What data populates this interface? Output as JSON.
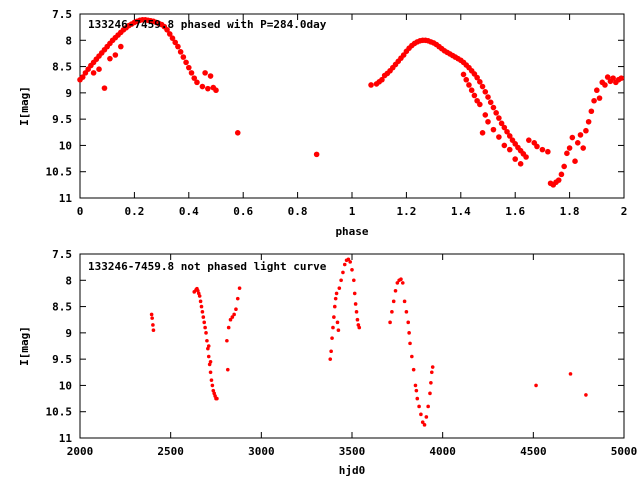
{
  "chart_data": [
    {
      "type": "scatter",
      "title": "133246-7459.8 phased with P=284.0day",
      "xlabel": "phase",
      "ylabel": "I[mag]",
      "xlim": [
        0,
        2
      ],
      "ylim": [
        7.5,
        11
      ],
      "y_inverted": true,
      "grid": false,
      "color": "#ff0000",
      "x_ticks": [
        0,
        0.2,
        0.4,
        0.6,
        0.8,
        1,
        1.2,
        1.4,
        1.6,
        1.8,
        2
      ],
      "x_tick_labels": [
        "0",
        "0.2",
        "0.4",
        "0.6",
        "0.8",
        "1",
        "1.2",
        "1.4",
        "1.6",
        "1.8",
        "2"
      ],
      "y_ticks": [
        7.5,
        8,
        8.5,
        9,
        9.5,
        10,
        10.5,
        11
      ],
      "y_tick_labels": [
        "7.5",
        "8",
        "8.5",
        "9",
        "9.5",
        "10",
        "10.5",
        "11"
      ],
      "series": [
        {
          "points": [
            [
              0.0,
              8.75
            ],
            [
              0.01,
              8.7
            ],
            [
              0.02,
              8.62
            ],
            [
              0.03,
              8.55
            ],
            [
              0.04,
              8.48
            ],
            [
              0.05,
              8.42
            ],
            [
              0.06,
              8.36
            ],
            [
              0.07,
              8.3
            ],
            [
              0.08,
              8.24
            ],
            [
              0.09,
              8.18
            ],
            [
              0.1,
              8.12
            ],
            [
              0.11,
              8.06
            ],
            [
              0.12,
              8.0
            ],
            [
              0.13,
              7.95
            ],
            [
              0.14,
              7.9
            ],
            [
              0.15,
              7.85
            ],
            [
              0.16,
              7.8
            ],
            [
              0.17,
              7.76
            ],
            [
              0.18,
              7.72
            ],
            [
              0.19,
              7.69
            ],
            [
              0.2,
              7.66
            ],
            [
              0.21,
              7.64
            ],
            [
              0.22,
              7.62
            ],
            [
              0.23,
              7.61
            ],
            [
              0.24,
              7.61
            ],
            [
              0.25,
              7.62
            ],
            [
              0.26,
              7.63
            ],
            [
              0.27,
              7.64
            ],
            [
              0.28,
              7.66
            ],
            [
              0.29,
              7.68
            ],
            [
              0.3,
              7.7
            ],
            [
              0.31,
              7.74
            ],
            [
              0.32,
              7.8
            ],
            [
              0.33,
              7.88
            ],
            [
              0.34,
              7.96
            ],
            [
              0.35,
              8.04
            ],
            [
              0.36,
              8.12
            ],
            [
              0.37,
              8.22
            ],
            [
              0.38,
              8.32
            ],
            [
              0.39,
              8.42
            ],
            [
              0.4,
              8.52
            ],
            [
              0.41,
              8.62
            ],
            [
              0.42,
              8.72
            ],
            [
              0.43,
              8.8
            ],
            [
              0.05,
              8.62
            ],
            [
              0.07,
              8.55
            ],
            [
              0.09,
              8.91
            ],
            [
              0.11,
              8.35
            ],
            [
              0.13,
              8.28
            ],
            [
              0.15,
              8.12
            ],
            [
              0.45,
              8.88
            ],
            [
              0.46,
              8.62
            ],
            [
              0.47,
              8.92
            ],
            [
              0.48,
              8.68
            ],
            [
              0.49,
              8.9
            ],
            [
              0.5,
              8.95
            ],
            [
              0.58,
              9.76
            ],
            [
              0.87,
              10.17
            ]
          ]
        },
        {
          "points": [
            [
              1.07,
              8.85
            ],
            [
              1.09,
              8.83
            ],
            [
              1.1,
              8.79
            ],
            [
              1.11,
              8.75
            ],
            [
              1.12,
              8.67
            ],
            [
              1.13,
              8.63
            ],
            [
              1.14,
              8.58
            ],
            [
              1.15,
              8.52
            ],
            [
              1.16,
              8.46
            ],
            [
              1.17,
              8.4
            ],
            [
              1.18,
              8.34
            ],
            [
              1.19,
              8.28
            ],
            [
              1.2,
              8.21
            ],
            [
              1.21,
              8.15
            ],
            [
              1.22,
              8.1
            ],
            [
              1.23,
              8.06
            ],
            [
              1.24,
              8.03
            ],
            [
              1.25,
              8.01
            ],
            [
              1.26,
              8.0
            ],
            [
              1.27,
              8.0
            ],
            [
              1.28,
              8.01
            ],
            [
              1.29,
              8.03
            ],
            [
              1.3,
              8.05
            ],
            [
              1.31,
              8.08
            ],
            [
              1.32,
              8.12
            ],
            [
              1.33,
              8.16
            ],
            [
              1.34,
              8.2
            ],
            [
              1.35,
              8.23
            ],
            [
              1.36,
              8.26
            ],
            [
              1.37,
              8.29
            ],
            [
              1.38,
              8.32
            ],
            [
              1.39,
              8.35
            ],
            [
              1.4,
              8.38
            ],
            [
              1.41,
              8.42
            ],
            [
              1.42,
              8.47
            ],
            [
              1.43,
              8.52
            ],
            [
              1.44,
              8.58
            ],
            [
              1.45,
              8.64
            ],
            [
              1.46,
              8.71
            ],
            [
              1.47,
              8.79
            ],
            [
              1.48,
              8.88
            ],
            [
              1.49,
              8.98
            ],
            [
              1.5,
              9.08
            ],
            [
              1.51,
              9.18
            ],
            [
              1.52,
              9.28
            ],
            [
              1.53,
              9.38
            ],
            [
              1.54,
              9.48
            ],
            [
              1.55,
              9.58
            ],
            [
              1.56,
              9.66
            ],
            [
              1.57,
              9.74
            ],
            [
              1.58,
              9.82
            ],
            [
              1.59,
              9.9
            ],
            [
              1.6,
              9.97
            ],
            [
              1.61,
              10.04
            ],
            [
              1.62,
              10.1
            ],
            [
              1.63,
              10.16
            ],
            [
              1.64,
              10.22
            ],
            [
              1.41,
              8.65
            ],
            [
              1.42,
              8.75
            ],
            [
              1.43,
              8.85
            ],
            [
              1.44,
              8.95
            ],
            [
              1.45,
              9.05
            ],
            [
              1.46,
              9.15
            ],
            [
              1.47,
              9.22
            ],
            [
              1.48,
              9.76
            ],
            [
              1.49,
              9.42
            ],
            [
              1.5,
              9.55
            ],
            [
              1.52,
              9.7
            ],
            [
              1.54,
              9.84
            ],
            [
              1.56,
              10.0
            ],
            [
              1.58,
              10.08
            ],
            [
              1.6,
              10.26
            ],
            [
              1.62,
              10.35
            ],
            [
              1.65,
              9.9
            ],
            [
              1.67,
              9.95
            ],
            [
              1.68,
              10.02
            ],
            [
              1.7,
              10.08
            ],
            [
              1.72,
              10.12
            ],
            [
              1.73,
              10.72
            ],
            [
              1.74,
              10.75
            ],
            [
              1.75,
              10.7
            ],
            [
              1.76,
              10.66
            ],
            [
              1.77,
              10.55
            ],
            [
              1.78,
              10.4
            ],
            [
              1.79,
              10.15
            ],
            [
              1.8,
              10.05
            ],
            [
              1.81,
              9.85
            ],
            [
              1.82,
              10.3
            ],
            [
              1.83,
              9.95
            ],
            [
              1.84,
              9.8
            ],
            [
              1.85,
              10.05
            ],
            [
              1.86,
              9.72
            ],
            [
              1.87,
              9.55
            ],
            [
              1.88,
              9.35
            ],
            [
              1.89,
              9.15
            ],
            [
              1.9,
              8.95
            ],
            [
              1.91,
              9.1
            ],
            [
              1.92,
              8.8
            ],
            [
              1.93,
              8.85
            ],
            [
              1.94,
              8.7
            ],
            [
              1.95,
              8.78
            ],
            [
              1.96,
              8.72
            ],
            [
              1.97,
              8.8
            ],
            [
              1.98,
              8.75
            ],
            [
              1.99,
              8.72
            ]
          ]
        }
      ]
    },
    {
      "type": "scatter",
      "title": "133246-7459.8 not phased light curve",
      "xlabel": "hjd0",
      "ylabel": "I[mag]",
      "xlim": [
        2000,
        5000
      ],
      "ylim": [
        7.5,
        11
      ],
      "y_inverted": true,
      "grid": false,
      "color": "#ff0000",
      "x_ticks": [
        2000,
        2500,
        3000,
        3500,
        4000,
        4500,
        5000
      ],
      "x_tick_labels": [
        "2000",
        "2500",
        "3000",
        "3500",
        "4000",
        "4500",
        "5000"
      ],
      "y_ticks": [
        7.5,
        8,
        8.5,
        9,
        9.5,
        10,
        10.5,
        11
      ],
      "y_tick_labels": [
        "7.5",
        "8",
        "8.5",
        "9",
        "9.5",
        "10",
        "10.5",
        "11"
      ],
      "series": [
        {
          "points": [
            [
              2395,
              8.65
            ],
            [
              2398,
              8.72
            ],
            [
              2402,
              8.85
            ],
            [
              2405,
              8.95
            ],
            [
              2630,
              8.22
            ],
            [
              2640,
              8.18
            ],
            [
              2645,
              8.16
            ],
            [
              2650,
              8.2
            ],
            [
              2655,
              8.25
            ],
            [
              2660,
              8.3
            ],
            [
              2665,
              8.4
            ],
            [
              2670,
              8.5
            ],
            [
              2675,
              8.6
            ],
            [
              2680,
              8.7
            ],
            [
              2685,
              8.8
            ],
            [
              2690,
              8.9
            ],
            [
              2695,
              9.0
            ],
            [
              2700,
              9.15
            ],
            [
              2705,
              9.3
            ],
            [
              2710,
              9.45
            ],
            [
              2715,
              9.6
            ],
            [
              2720,
              9.75
            ],
            [
              2725,
              9.9
            ],
            [
              2730,
              10.0
            ],
            [
              2735,
              10.1
            ],
            [
              2740,
              10.15
            ],
            [
              2745,
              10.2
            ],
            [
              2750,
              10.25
            ],
            [
              2755,
              10.25
            ],
            [
              2710,
              9.25
            ],
            [
              2720,
              9.55
            ],
            [
              2810,
              9.15
            ],
            [
              2815,
              9.7
            ],
            [
              2820,
              8.9
            ],
            [
              2830,
              8.75
            ],
            [
              2840,
              8.7
            ],
            [
              2850,
              8.65
            ],
            [
              2860,
              8.55
            ],
            [
              2870,
              8.35
            ],
            [
              2880,
              8.15
            ],
            [
              3380,
              9.5
            ],
            [
              3385,
              9.35
            ],
            [
              3390,
              9.1
            ],
            [
              3395,
              8.9
            ],
            [
              3400,
              8.7
            ],
            [
              3405,
              8.5
            ],
            [
              3410,
              8.35
            ],
            [
              3415,
              8.25
            ],
            [
              3420,
              8.8
            ],
            [
              3425,
              8.95
            ],
            [
              3430,
              8.15
            ],
            [
              3440,
              8.0
            ],
            [
              3450,
              7.85
            ],
            [
              3460,
              7.7
            ],
            [
              3470,
              7.62
            ],
            [
              3480,
              7.6
            ],
            [
              3490,
              7.65
            ],
            [
              3500,
              7.8
            ],
            [
              3510,
              8.0
            ],
            [
              3515,
              8.25
            ],
            [
              3520,
              8.45
            ],
            [
              3525,
              8.6
            ],
            [
              3530,
              8.75
            ],
            [
              3535,
              8.85
            ],
            [
              3540,
              8.9
            ],
            [
              3710,
              8.8
            ],
            [
              3720,
              8.6
            ],
            [
              3730,
              8.4
            ],
            [
              3740,
              8.2
            ],
            [
              3750,
              8.05
            ],
            [
              3760,
              8.0
            ],
            [
              3770,
              7.98
            ],
            [
              3780,
              8.05
            ],
            [
              3790,
              8.4
            ],
            [
              3800,
              8.6
            ],
            [
              3810,
              8.8
            ],
            [
              3815,
              9.0
            ],
            [
              3820,
              9.2
            ],
            [
              3830,
              9.45
            ],
            [
              3840,
              9.7
            ],
            [
              3850,
              10.0
            ],
            [
              3855,
              10.1
            ],
            [
              3860,
              10.25
            ],
            [
              3870,
              10.4
            ],
            [
              3880,
              10.55
            ],
            [
              3890,
              10.7
            ],
            [
              3900,
              10.75
            ],
            [
              3910,
              10.6
            ],
            [
              3920,
              10.4
            ],
            [
              3930,
              10.15
            ],
            [
              3935,
              9.95
            ],
            [
              3940,
              9.75
            ],
            [
              3945,
              9.65
            ],
            [
              4515,
              10.0
            ],
            [
              4705,
              9.78
            ],
            [
              4790,
              10.18
            ]
          ]
        }
      ]
    }
  ]
}
